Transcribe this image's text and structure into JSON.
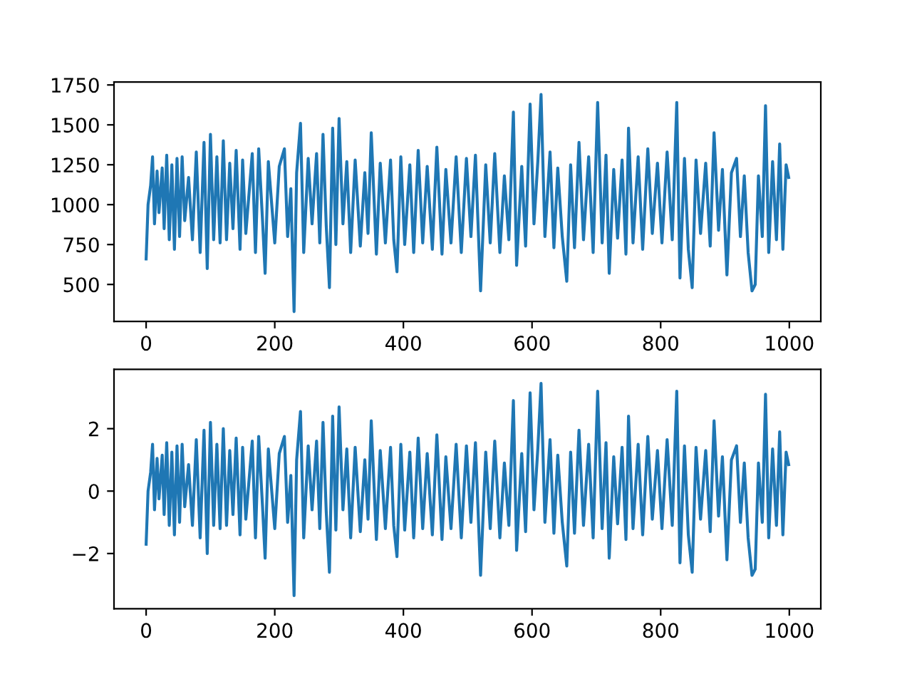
{
  "chart_data": [
    {
      "type": "line",
      "color": "#1f77b4",
      "xlim": [
        -49.95,
        1048.95
      ],
      "ylim": [
        268,
        1768
      ],
      "xticks": [
        0,
        200,
        400,
        600,
        800,
        1000
      ],
      "yticks": [
        500,
        750,
        1000,
        1250,
        1500,
        1750
      ],
      "x": [
        0,
        3,
        7,
        10,
        13,
        17,
        20,
        25,
        28,
        32,
        36,
        40,
        44,
        48,
        52,
        56,
        60,
        66,
        72,
        78,
        84,
        90,
        95,
        100,
        105,
        110,
        115,
        120,
        125,
        130,
        135,
        140,
        146,
        150,
        155,
        165,
        170,
        175,
        181,
        185,
        190,
        200,
        207,
        215,
        220,
        225,
        230,
        234,
        240,
        245,
        252,
        258,
        265,
        270,
        275,
        280,
        285,
        290,
        295,
        300,
        306,
        312,
        318,
        325,
        333,
        340,
        345,
        350,
        358,
        364,
        372,
        380,
        385,
        390,
        396,
        402,
        410,
        416,
        423,
        430,
        437,
        445,
        452,
        460,
        466,
        474,
        482,
        490,
        498,
        505,
        512,
        520,
        528,
        535,
        542,
        550,
        557,
        564,
        571,
        576,
        584,
        590,
        597,
        603,
        609,
        614,
        620,
        628,
        634,
        640,
        647,
        654,
        660,
        666,
        673,
        680,
        688,
        695,
        702,
        709,
        715,
        720,
        727,
        733,
        740,
        746,
        750,
        757,
        765,
        772,
        780,
        787,
        795,
        802,
        810,
        818,
        825,
        830,
        837,
        843,
        849,
        855,
        862,
        870,
        877,
        883,
        890,
        896,
        903,
        910,
        918,
        924,
        930,
        936,
        942,
        947,
        952,
        958,
        963,
        968,
        974,
        980,
        985,
        990,
        995,
        999
      ],
      "values": [
        660,
        1000,
        1120,
        1300,
        880,
        1210,
        950,
        1230,
        850,
        1310,
        780,
        1250,
        720,
        1290,
        800,
        1300,
        900,
        1170,
        780,
        1330,
        700,
        1390,
        600,
        1440,
        780,
        1300,
        760,
        1400,
        780,
        1260,
        850,
        1340,
        720,
        1280,
        820,
        1320,
        700,
        1350,
        900,
        570,
        1270,
        760,
        1240,
        1350,
        800,
        1100,
        330,
        1200,
        1510,
        700,
        1290,
        880,
        1320,
        760,
        1440,
        870,
        480,
        1480,
        750,
        1540,
        880,
        1270,
        700,
        1280,
        740,
        1200,
        820,
        1450,
        690,
        1260,
        760,
        1280,
        780,
        580,
        1300,
        750,
        1250,
        700,
        1340,
        760,
        1240,
        720,
        1360,
        690,
        1220,
        760,
        1300,
        700,
        1290,
        800,
        1310,
        460,
        1250,
        760,
        1320,
        700,
        1180,
        780,
        1580,
        620,
        1240,
        740,
        1630,
        880,
        1270,
        1690,
        800,
        1330,
        730,
        1230,
        800,
        520,
        1250,
        730,
        1390,
        780,
        1300,
        700,
        1640,
        760,
        1310,
        570,
        1220,
        790,
        1280,
        690,
        1480,
        760,
        1300,
        720,
        1350,
        820,
        1260,
        760,
        1330,
        780,
        1640,
        540,
        1290,
        720,
        480,
        1280,
        820,
        1260,
        740,
        1450,
        840,
        1220,
        560,
        1200,
        1290,
        800,
        1180,
        700,
        460,
        500,
        1180,
        800,
        1620,
        700,
        1270,
        780,
        1380,
        720,
        1250,
        1170
      ]
    },
    {
      "type": "line",
      "color": "#1f77b4",
      "xlim": [
        -49.95,
        1048.95
      ],
      "ylim": [
        -3.77,
        3.9
      ],
      "xticks": [
        0,
        200,
        400,
        600,
        800,
        1000
      ],
      "yticks": [
        {
          "value": -2,
          "label": "−2"
        },
        0,
        2
      ],
      "x": [
        0,
        3,
        7,
        10,
        13,
        17,
        20,
        25,
        28,
        32,
        36,
        40,
        44,
        48,
        52,
        56,
        60,
        66,
        72,
        78,
        84,
        90,
        95,
        100,
        105,
        110,
        115,
        120,
        125,
        130,
        135,
        140,
        146,
        150,
        155,
        165,
        170,
        175,
        181,
        185,
        190,
        200,
        207,
        215,
        220,
        225,
        230,
        234,
        240,
        245,
        252,
        258,
        265,
        270,
        275,
        280,
        285,
        290,
        295,
        300,
        306,
        312,
        318,
        325,
        333,
        340,
        345,
        350,
        358,
        364,
        372,
        380,
        385,
        390,
        396,
        402,
        410,
        416,
        423,
        430,
        437,
        445,
        452,
        460,
        466,
        474,
        482,
        490,
        498,
        505,
        512,
        520,
        528,
        535,
        542,
        550,
        557,
        564,
        571,
        576,
        584,
        590,
        597,
        603,
        609,
        614,
        620,
        628,
        634,
        640,
        647,
        654,
        660,
        666,
        673,
        680,
        688,
        695,
        702,
        709,
        715,
        720,
        727,
        733,
        740,
        746,
        750,
        757,
        765,
        772,
        780,
        787,
        795,
        802,
        810,
        818,
        825,
        830,
        837,
        843,
        849,
        855,
        862,
        870,
        877,
        883,
        890,
        896,
        903,
        910,
        918,
        924,
        930,
        936,
        942,
        947,
        952,
        958,
        963,
        968,
        974,
        980,
        985,
        990,
        995,
        999
      ],
      "values": [
        -1.7,
        0,
        0.6,
        1.5,
        -0.6,
        1.05,
        -0.25,
        1.15,
        -0.75,
        1.55,
        -1.1,
        1.25,
        -1.4,
        1.45,
        -1.0,
        1.5,
        -0.5,
        0.85,
        -1.1,
        1.65,
        -1.5,
        1.95,
        -2.0,
        2.2,
        -1.1,
        1.5,
        -1.2,
        2.0,
        -1.1,
        1.3,
        -0.75,
        1.7,
        -1.4,
        1.4,
        -0.9,
        1.6,
        -1.5,
        1.75,
        -0.5,
        -2.15,
        1.35,
        -1.2,
        1.2,
        1.75,
        -1.0,
        0.5,
        -3.35,
        1.0,
        2.55,
        -1.5,
        1.45,
        -0.6,
        1.6,
        -1.2,
        2.2,
        -0.65,
        -2.6,
        2.4,
        -1.25,
        2.7,
        -0.6,
        1.35,
        -1.5,
        1.4,
        -1.3,
        1.0,
        -0.9,
        2.25,
        -1.55,
        1.3,
        -1.2,
        1.4,
        -1.1,
        -2.1,
        1.5,
        -1.25,
        1.25,
        -1.5,
        1.7,
        -1.2,
        1.2,
        -1.4,
        1.8,
        -1.55,
        1.1,
        -1.2,
        1.5,
        -1.5,
        1.45,
        -1.0,
        1.55,
        -2.7,
        1.25,
        -1.2,
        1.6,
        -1.5,
        0.9,
        -1.1,
        2.9,
        -1.9,
        1.2,
        -1.3,
        3.15,
        -0.6,
        1.35,
        3.45,
        -1.0,
        1.65,
        -1.35,
        1.15,
        -1.0,
        -2.4,
        1.25,
        -1.35,
        1.95,
        -1.1,
        1.5,
        -1.5,
        3.2,
        -1.2,
        1.55,
        -2.15,
        1.1,
        -1.05,
        1.4,
        -1.55,
        2.4,
        -1.2,
        1.5,
        -1.4,
        1.75,
        -0.9,
        1.3,
        -1.2,
        1.65,
        -1.1,
        3.2,
        -2.3,
        1.45,
        -1.4,
        -2.6,
        1.4,
        -0.9,
        1.3,
        -1.3,
        2.25,
        -0.8,
        1.1,
        -2.2,
        1.0,
        1.45,
        -1.0,
        0.9,
        -1.5,
        -2.7,
        -2.5,
        0.9,
        -1.0,
        3.1,
        -1.5,
        1.35,
        -1.1,
        1.9,
        -1.4,
        1.25,
        0.85
      ]
    }
  ]
}
